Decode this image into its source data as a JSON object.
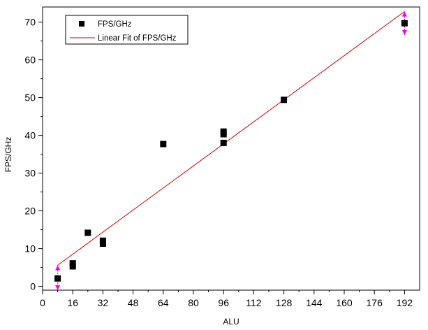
{
  "chart_data": {
    "type": "scatter",
    "xlabel": "ALU",
    "ylabel": "FPS/GHz",
    "xlim": [
      0,
      200
    ],
    "ylim": [
      -1,
      74
    ],
    "xticks": [
      0,
      16,
      32,
      48,
      64,
      80,
      96,
      112,
      128,
      144,
      160,
      176,
      192
    ],
    "yticks": [
      0,
      10,
      20,
      30,
      40,
      50,
      60,
      70
    ],
    "grid": false,
    "legend_position": "top-left",
    "series": [
      {
        "name": "FPS/GHz",
        "kind": "points",
        "marker": "square",
        "color": "#000000",
        "x": [
          8,
          16,
          16,
          24,
          32,
          32,
          64,
          96,
          96,
          96,
          128,
          192
        ],
        "y": [
          2.1,
          5.3,
          6.1,
          14.2,
          11.3,
          12.1,
          37.7,
          38.0,
          40.3,
          41.0,
          49.4,
          69.7
        ]
      },
      {
        "name": "Linear Fit of FPS/GHz",
        "kind": "line",
        "color": "#cc0000",
        "x": [
          8,
          192
        ],
        "y": [
          5.6,
          72.8
        ]
      }
    ],
    "error_markers": [
      {
        "x": 8,
        "y_low": -1.0,
        "y_high": 5.6,
        "color": "#ee00ee"
      },
      {
        "x": 192,
        "y_low": 66.6,
        "y_high": 72.8,
        "color": "#ee00ee"
      }
    ]
  }
}
